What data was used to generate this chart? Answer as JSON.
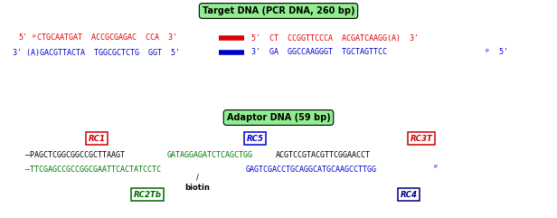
{
  "fig_width": 6.16,
  "fig_height": 2.41,
  "dpi": 100,
  "bg_color": "#ffffff",
  "target_dna_label": "Target DNA (PCR DNA, 260 bp)",
  "target_dna_box_color": "#90EE90",
  "adaptor_dna_label": "Adaptor DNA (59 bp)",
  "adaptor_dna_box_color": "#90EE90",
  "rc1_label": "RC1",
  "rc1_color": "#cc0000",
  "rc5_label": "RC5",
  "rc5_color": "#0000cc",
  "rc3t_label": "RC3T",
  "rc3t_color": "#cc0000",
  "rc2tb_label": "RC2Tb",
  "rc2tb_color": "#006600",
  "rc4_label": "RC4",
  "rc4_color": "#000080",
  "biotin_label": "biotin",
  "red_color": "#dd0000",
  "blue_color": "#0000cc",
  "green_color": "#007700",
  "black_color": "#000000"
}
